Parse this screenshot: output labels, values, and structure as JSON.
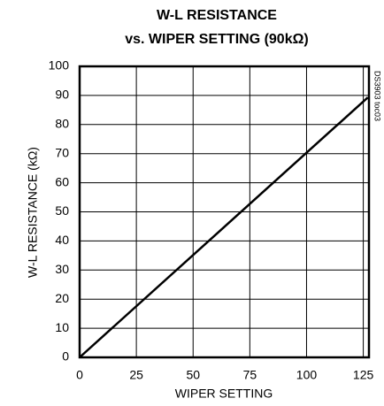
{
  "chart_data": {
    "type": "line",
    "title": "W-L RESISTANCE",
    "subtitle": "vs. WIPER SETTING (90kΩ)",
    "annotation": "DS3903 toc03",
    "x_label": "WIPER SETTING",
    "y_label": "W-L RESISTANCE (kΩ)",
    "x": [
      0,
      127
    ],
    "series": [
      {
        "name": "W-L resistance",
        "color": "#000000",
        "values": [
          0,
          89.3
        ]
      }
    ],
    "xlim": [
      0,
      127.5
    ],
    "xticks": [
      0,
      25,
      50,
      75,
      100,
      125
    ],
    "ylim": [
      0,
      100
    ],
    "yticks": [
      0,
      10,
      20,
      30,
      40,
      50,
      60,
      70,
      80,
      90,
      100
    ],
    "grid": true
  }
}
